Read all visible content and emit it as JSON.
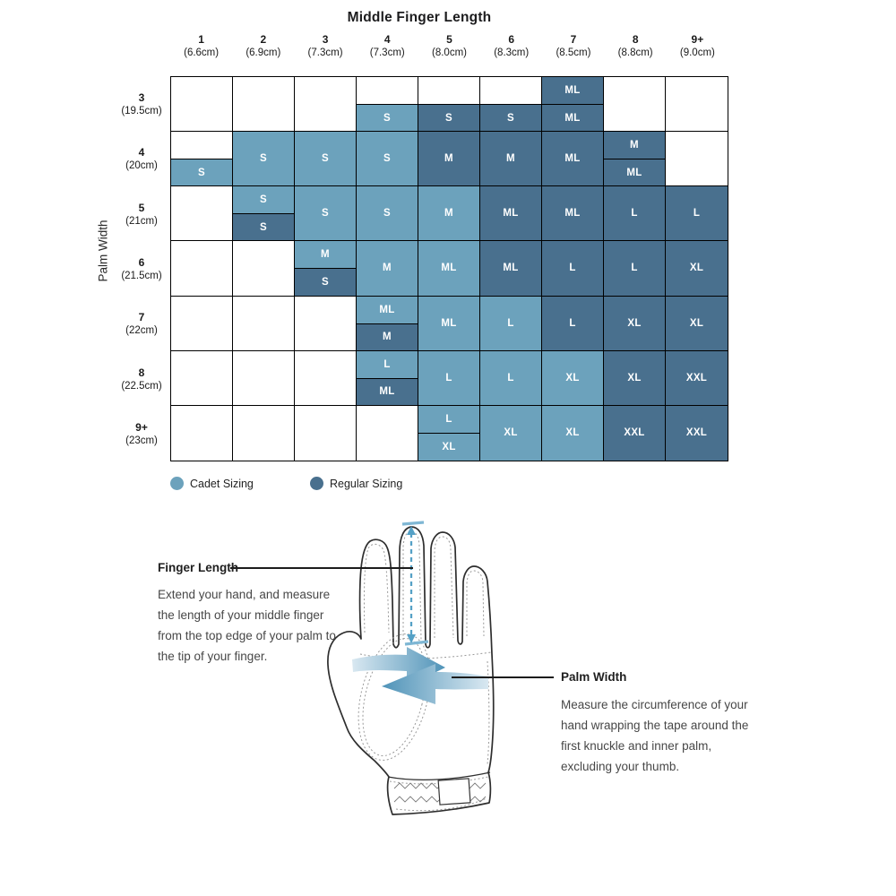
{
  "chart_data": {
    "type": "heatmap",
    "title": "Middle Finger Length",
    "ylabel": "Palm Width",
    "legend_position": "bottom-left",
    "colors": {
      "cadet": "#6CA2BC",
      "regular": "#49708E"
    },
    "legend": [
      {
        "label": "Cadet Sizing",
        "variant": "cadet"
      },
      {
        "label": "Regular Sizing",
        "variant": "regular"
      }
    ],
    "columns": [
      {
        "num": "1",
        "cm": "(6.6cm)"
      },
      {
        "num": "2",
        "cm": "(6.9cm)"
      },
      {
        "num": "3",
        "cm": "(7.3cm)"
      },
      {
        "num": "4",
        "cm": "(7.3cm)"
      },
      {
        "num": "5",
        "cm": "(8.0cm)"
      },
      {
        "num": "6",
        "cm": "(8.3cm)"
      },
      {
        "num": "7",
        "cm": "(8.5cm)"
      },
      {
        "num": "8",
        "cm": "(8.8cm)"
      },
      {
        "num": "9+",
        "cm": "(9.0cm)"
      }
    ],
    "rows": [
      {
        "num": "3",
        "cm": "(19.5cm)",
        "cells": [
          null,
          null,
          null,
          {
            "split": true,
            "top": null,
            "bottom": {
              "size": "S",
              "variant": "cadet"
            }
          },
          {
            "split": true,
            "top": null,
            "bottom": {
              "size": "S",
              "variant": "regular"
            }
          },
          {
            "split": true,
            "top": null,
            "bottom": {
              "size": "S",
              "variant": "regular"
            }
          },
          {
            "split": true,
            "top": {
              "size": "ML",
              "variant": "regular"
            },
            "bottom": {
              "size": "ML",
              "variant": "regular"
            }
          },
          null,
          null
        ]
      },
      {
        "num": "4",
        "cm": "(20cm)",
        "cells": [
          {
            "split": true,
            "top": null,
            "bottom": {
              "size": "S",
              "variant": "cadet"
            }
          },
          {
            "size": "S",
            "variant": "cadet"
          },
          {
            "size": "S",
            "variant": "cadet"
          },
          {
            "size": "S",
            "variant": "cadet"
          },
          {
            "size": "M",
            "variant": "regular"
          },
          {
            "size": "M",
            "variant": "regular"
          },
          {
            "size": "ML",
            "variant": "regular"
          },
          {
            "split": true,
            "top": {
              "size": "M",
              "variant": "regular"
            },
            "bottom": {
              "size": "ML",
              "variant": "regular"
            }
          },
          null
        ]
      },
      {
        "num": "5",
        "cm": "(21cm)",
        "cells": [
          null,
          {
            "split": true,
            "top": {
              "size": "S",
              "variant": "cadet"
            },
            "bottom": {
              "size": "S",
              "variant": "regular"
            }
          },
          {
            "size": "S",
            "variant": "cadet"
          },
          {
            "size": "S",
            "variant": "cadet"
          },
          {
            "size": "M",
            "variant": "cadet"
          },
          {
            "size": "ML",
            "variant": "regular"
          },
          {
            "size": "ML",
            "variant": "regular"
          },
          {
            "size": "L",
            "variant": "regular"
          },
          {
            "size": "L",
            "variant": "regular"
          }
        ]
      },
      {
        "num": "6",
        "cm": "(21.5cm)",
        "cells": [
          null,
          null,
          {
            "split": true,
            "top": {
              "size": "M",
              "variant": "cadet"
            },
            "bottom": {
              "size": "S",
              "variant": "regular"
            }
          },
          {
            "size": "M",
            "variant": "cadet"
          },
          {
            "size": "ML",
            "variant": "cadet"
          },
          {
            "size": "ML",
            "variant": "regular"
          },
          {
            "size": "L",
            "variant": "regular"
          },
          {
            "size": "L",
            "variant": "regular"
          },
          {
            "size": "XL",
            "variant": "regular"
          }
        ]
      },
      {
        "num": "7",
        "cm": "(22cm)",
        "cells": [
          null,
          null,
          null,
          {
            "split": true,
            "top": {
              "size": "ML",
              "variant": "cadet"
            },
            "bottom": {
              "size": "M",
              "variant": "regular"
            }
          },
          {
            "size": "ML",
            "variant": "cadet"
          },
          {
            "size": "L",
            "variant": "cadet"
          },
          {
            "size": "L",
            "variant": "regular"
          },
          {
            "size": "XL",
            "variant": "regular"
          },
          {
            "size": "XL",
            "variant": "regular"
          }
        ]
      },
      {
        "num": "8",
        "cm": "(22.5cm)",
        "cells": [
          null,
          null,
          null,
          {
            "split": true,
            "top": {
              "size": "L",
              "variant": "cadet"
            },
            "bottom": {
              "size": "ML",
              "variant": "regular"
            }
          },
          {
            "size": "L",
            "variant": "cadet"
          },
          {
            "size": "L",
            "variant": "cadet"
          },
          {
            "size": "XL",
            "variant": "cadet"
          },
          {
            "size": "XL",
            "variant": "regular"
          },
          {
            "size": "XXL",
            "variant": "regular"
          }
        ]
      },
      {
        "num": "9+",
        "cm": "(23cm)",
        "cells": [
          null,
          null,
          null,
          null,
          {
            "split": true,
            "top": {
              "size": "L",
              "variant": "cadet"
            },
            "bottom": {
              "size": "XL",
              "variant": "cadet"
            }
          },
          {
            "size": "XL",
            "variant": "cadet"
          },
          {
            "size": "XL",
            "variant": "cadet"
          },
          {
            "size": "XXL",
            "variant": "regular"
          },
          {
            "size": "XXL",
            "variant": "regular"
          }
        ]
      }
    ]
  },
  "instructions": {
    "finger_length": {
      "title": "Finger Length",
      "body": "Extend your hand, and measure the length of your middle finger from the top edge of your palm to the tip of your finger."
    },
    "palm_width": {
      "title": "Palm Width",
      "body": "Measure the circumference of your hand wrapping the tape around the first knuckle and inner palm, excluding your thumb."
    }
  }
}
